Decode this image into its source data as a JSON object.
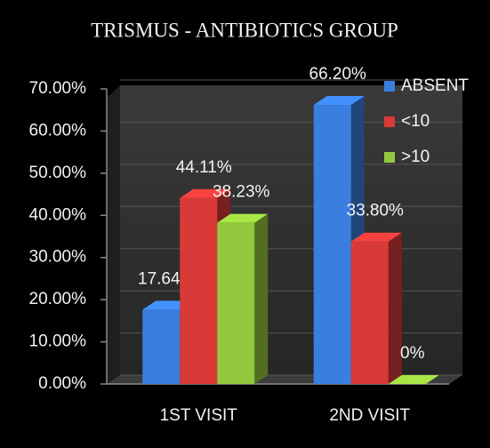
{
  "chart_data": {
    "type": "bar3d",
    "title": "TRISMUS - ANTIBIOTICS GROUP",
    "categories": [
      "1ST VISIT",
      "2ND VISIT"
    ],
    "series": [
      {
        "name": "ABSENT",
        "color": "#3a7ee0",
        "values": [
          17.64,
          66.2
        ],
        "value_labels": [
          "17.64%",
          "66.20%"
        ]
      },
      {
        "name": "<10",
        "color": "#d93a38",
        "values": [
          44.11,
          33.8
        ],
        "value_labels": [
          "44.11%",
          "33.80%"
        ]
      },
      {
        "name": ">10",
        "color": "#93c83c",
        "values": [
          38.23,
          0
        ],
        "value_labels": [
          "38.23%",
          "0%"
        ]
      }
    ],
    "ylim": [
      0,
      70
    ],
    "yticks": [
      {
        "value": 0,
        "label": "0.00%"
      },
      {
        "value": 10,
        "label": "10.00%"
      },
      {
        "value": 20,
        "label": "20.00%"
      },
      {
        "value": 30,
        "label": "30.00%"
      },
      {
        "value": 40,
        "label": "40.00%"
      },
      {
        "value": 50,
        "label": "50.00%"
      },
      {
        "value": 60,
        "label": "60.00%"
      },
      {
        "value": 70,
        "label": "70.00%"
      }
    ],
    "grid": true,
    "legend": "top-right"
  }
}
